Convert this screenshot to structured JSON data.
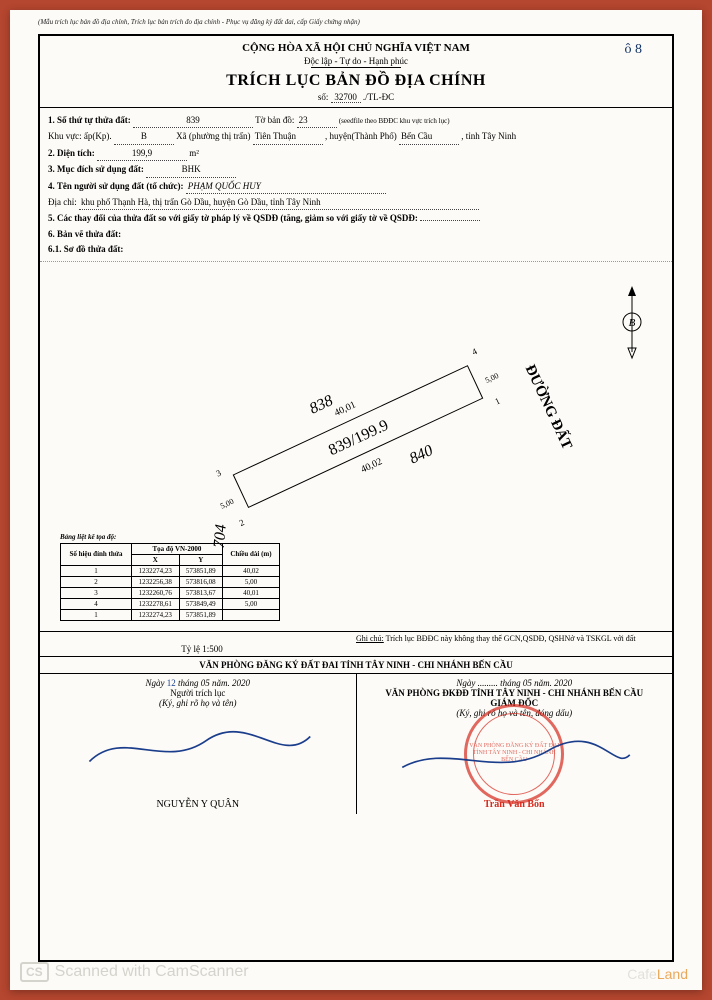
{
  "top_note": "(Mẫu trích lục bản đồ địa chính, Trích lục bản trích đo địa chính - Phục vụ đăng ký đất đai, cấp Giấy chứng nhận)",
  "header": {
    "country": "CỘNG HÒA XÃ HỘI CHỦ NGHĨA VIỆT NAM",
    "motto": "Độc lập - Tự do - Hạnh phúc",
    "title": "TRÍCH LỤC BẢN ĐỒ ĐỊA CHÍNH",
    "so_label": "số:",
    "so_value": "32700",
    "so_suffix": "./TL-ĐC",
    "hand_anno": "ô 8"
  },
  "fields": {
    "f1_label": "1. Số thứ tự thửa đất:",
    "f1_value": "839",
    "to_ban_do_label": "Tờ bản đồ:",
    "to_ban_do_value": "23",
    "seedfile": "(seedfile theo BĐĐC khu vực trích lục)",
    "khu_vuc_label": "Khu vực: ấp(Kp).",
    "khu_vuc_value": "B",
    "xa_label": "Xã (phường thị trấn)",
    "xa_value": "Tiên Thuận",
    "huyen_label": ", huyện(Thành Phố)",
    "huyen_value": "Bến Cầu",
    "tinh_label": ", tỉnh Tây Ninh",
    "f2_label": "2. Diện tích:",
    "f2_value": "199,9",
    "f2_unit": "m²",
    "f3_label": "3. Mục đích sử dụng đất:",
    "f3_value": "BHK",
    "f4_label": "4. Tên người sử dụng đất (tổ chức):",
    "f4_value": "PHẠM QUỐC HUY",
    "dia_chi_label": "Địa chỉ:",
    "dia_chi_value": "khu phố Thạnh Hà, thị trấn Gò Dầu, huyện Gò Dầu, tỉnh Tây Ninh",
    "f5_label": "5. Các thay đổi của thửa đất so với giấy tờ pháp lý về QSDĐ (tăng, giảm so với giấy tờ về QSDĐ:",
    "f6_label": "6. Bản vẽ thửa đất:",
    "f61_label": "6.1. Sơ đồ thửa đất:"
  },
  "map": {
    "road_label": "ĐƯỜNG ĐẤT",
    "parcel_838": "838",
    "parcel_center": "839/199.9",
    "parcel_840": "840",
    "parcel_704": "704",
    "dim_top": "40,01",
    "dim_bottom": "40,02",
    "dim_right": "5,00",
    "dim_left": "5,00",
    "corner_1": "1",
    "corner_2": "2",
    "corner_3": "3",
    "corner_4": "4",
    "compass_b": "B"
  },
  "coord_table": {
    "title": "Bảng liệt kê tọa độ:",
    "h_so": "Số hiệu\nđỉnh thửa",
    "h_toado": "Tọa độ VN-2000",
    "h_x": "X",
    "h_y": "Y",
    "h_chieu": "Chiều dài\n(m)",
    "rows": [
      {
        "id": "1",
        "x": "1232274,23",
        "y": "573851,89",
        "d": "40,02"
      },
      {
        "id": "2",
        "x": "1232256,38",
        "y": "573816,08",
        "d": "5,00"
      },
      {
        "id": "3",
        "x": "1232260,76",
        "y": "573813,67",
        "d": "40,01"
      },
      {
        "id": "4",
        "x": "1232278,61",
        "y": "573849,49",
        "d": "5,00"
      },
      {
        "id": "1",
        "x": "1232274,23",
        "y": "573851,89",
        "d": ""
      }
    ]
  },
  "footer": {
    "scale_label": "Tỷ lệ 1:500",
    "ghi_chu_label": "Ghi chú:",
    "ghi_chu_text": "Trích lục BĐĐC này không thay thế GCN,QSDĐ, QSHNở và TSKGL với đất",
    "office": "VĂN PHÒNG ĐĂNG KÝ ĐẤT ĐAI TỈNH TÂY NINH - CHI NHÁNH BẾN CẦU",
    "left_date_prefix": "Ngày",
    "left_date_day": "12",
    "left_date_rest": "tháng 05 năm. 2020",
    "left_role": "Người trích lục",
    "left_instr": "(Ký, ghi rõ họ và tên)",
    "left_name": "NGUYỄN Y QUÂN",
    "right_date": "Ngày ......... tháng 05 năm. 2020",
    "right_office": "VĂN PHÒNG ĐKĐĐ TỈNH TÂY NINH - CHI NHÁNH BẾN CẦU",
    "right_role": "GIÁM ĐỐC",
    "right_instr": "(Ký, ghi rõ họ và tên, đóng dấu)",
    "right_name": "Trần Văn Bổn",
    "stamp_text": "VĂN PHÒNG\nĐĂNG KÝ ĐẤT ĐAI\nTỈNH TÂY NINH\n- CHI NHÁNH\nBẾN CẦU"
  },
  "camscan": {
    "cs": "CS",
    "text": "Scanned with CamScanner"
  },
  "watermark": {
    "cafe": "Cafe",
    "land": "Land"
  },
  "colors": {
    "bg": "#b5462f",
    "paper": "#fdfbf7",
    "ink": "#000000",
    "blue_ink": "#1b3e8c",
    "stamp": "#d62b1f",
    "camscan": "#d0cfc8",
    "wm_orange": "#e8a04c"
  }
}
